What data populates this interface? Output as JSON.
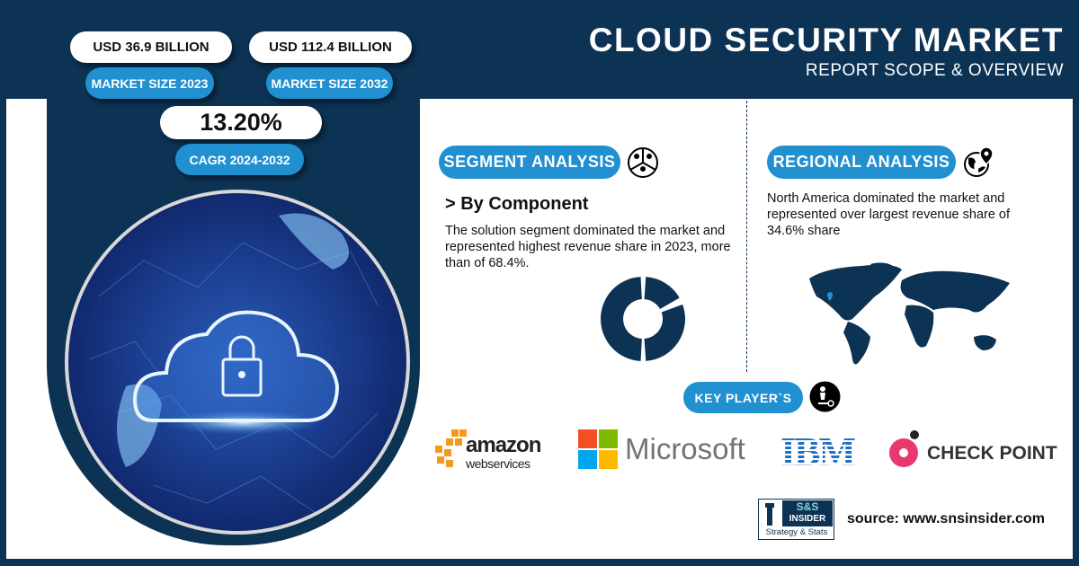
{
  "header": {
    "title": "CLOUD SECURITY MARKET",
    "subtitle": "REPORT SCOPE & OVERVIEW"
  },
  "stats": {
    "market_size_2023": {
      "value": "USD 36.9 BILLION",
      "label": "MARKET SIZE 2023"
    },
    "market_size_2032": {
      "value": "USD 112.4 BILLION",
      "label": "MARKET SIZE 2032"
    },
    "cagr": {
      "value": "13.20%",
      "label": "CAGR 2024-2032"
    }
  },
  "segment": {
    "heading": "SEGMENT ANALYSIS",
    "icon": "people-pie-icon",
    "subheading": "> By Component",
    "text": "The solution segment dominated the market and represented highest revenue share in 2023, more than of 68.4%.",
    "share_percent": 68.4
  },
  "regional": {
    "heading": "REGIONAL ANALYSIS",
    "icon": "globe-pin-icon",
    "text": "North America dominated the market and represented over largest revenue share of 34.6% share",
    "share_percent": 34.6
  },
  "key_players": {
    "heading": "KEY PLAYER`S",
    "icon": "person-key-icon",
    "players": [
      "amazon web services",
      "Microsoft",
      "IBM",
      "CHECK POINT"
    ]
  },
  "footer": {
    "logo_top": "S&S",
    "logo_mid": "INSIDER",
    "logo_bottom": "Strategy & Stats",
    "source": "source: www.snsinsider.com"
  },
  "colors": {
    "navy": "#0c3254",
    "accent_blue": "#2090d0"
  }
}
